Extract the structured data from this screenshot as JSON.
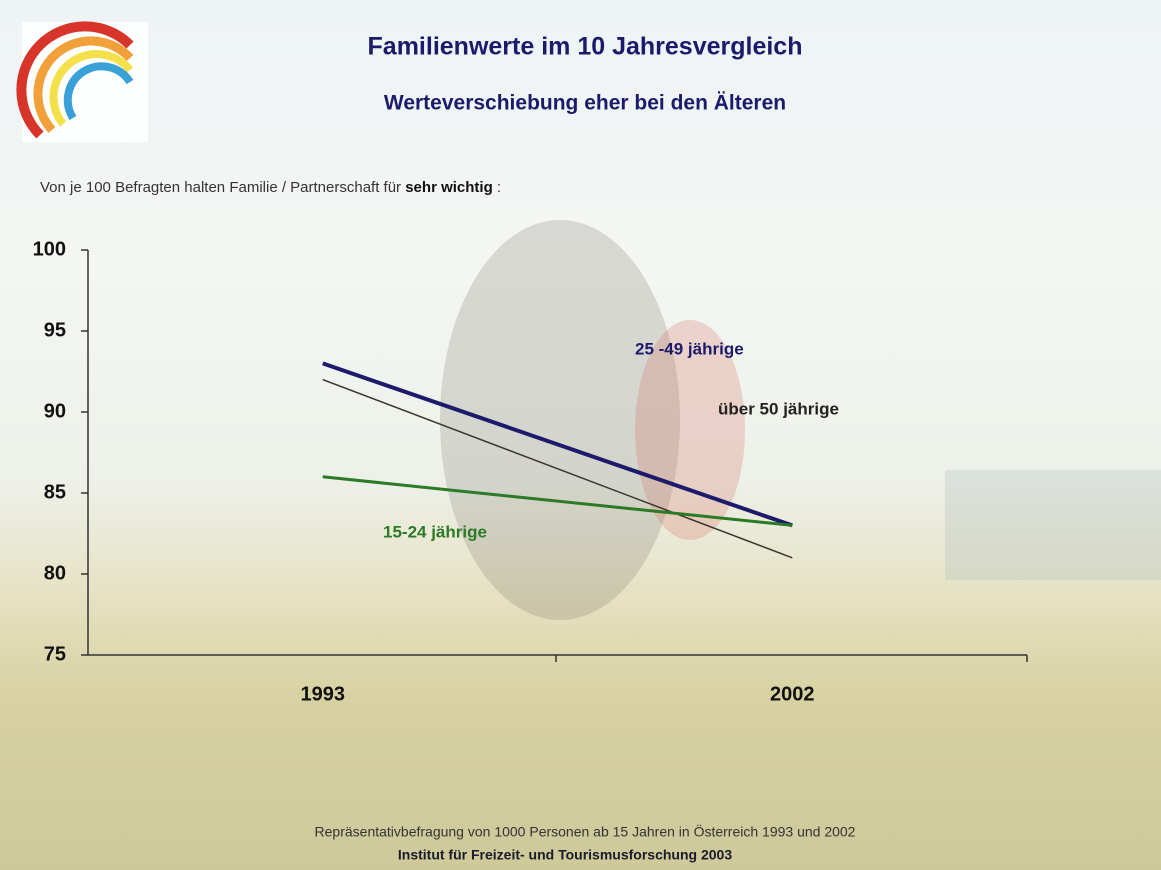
{
  "chart_data": {
    "type": "line",
    "title": "Familienwerte im 10 Jahresvergleich",
    "subtitle": "Werteverschiebung eher bei den Älteren",
    "categories": [
      "1993",
      "2002"
    ],
    "series": [
      {
        "name": "25 -49 jährige",
        "color": "#1c1a6b",
        "values": [
          93,
          83
        ]
      },
      {
        "name": "über 50 jährige",
        "color": "#3a3530",
        "values": [
          92,
          81
        ]
      },
      {
        "name": "15-24 jährige",
        "color": "#2b7a25",
        "values": [
          86,
          83
        ]
      }
    ],
    "ylim": [
      75,
      100
    ],
    "yticks": [
      75,
      80,
      85,
      90,
      95,
      100
    ],
    "grid": false
  },
  "slide": {
    "note": {
      "text": "Von je 100 Befragten halten Familie / Partnerschaft für",
      "emphasis": "sehr wichtig",
      "suffix": ":"
    },
    "footer": [
      "Repräsentativbefragung von 1000 Personen ab 15 Jahren in Österreich 1993 und 2002",
      "Institut für Freizeit- und Tourismusforschung 2003"
    ]
  }
}
